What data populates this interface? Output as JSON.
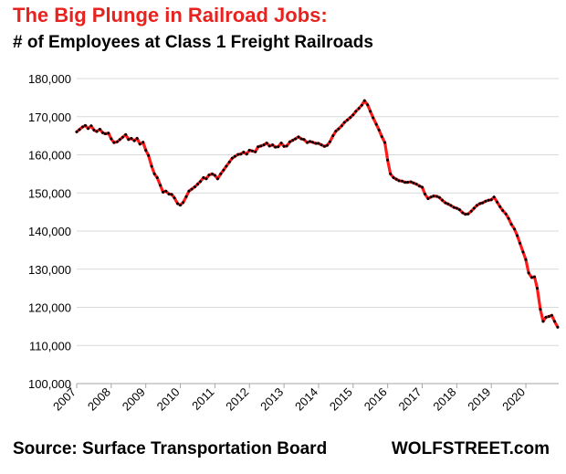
{
  "header": {
    "title": "The Big Plunge in Railroad Jobs:",
    "subtitle": "# of Employees at Class 1 Freight Railroads"
  },
  "footer": {
    "source": "Source: Surface Transportation Board",
    "brand": "WOLFSTREET.com"
  },
  "colors": {
    "title": "#e8221e",
    "line": "#ff1a1a",
    "dots": "#000000",
    "grid": "#d9d9d9",
    "axis": "#a6a6a6"
  },
  "chart_data": {
    "type": "line",
    "title": "The Big Plunge in Railroad Jobs:",
    "subtitle": "# of Employees at Class 1 Freight Railroads",
    "xlabel": "",
    "ylabel": "",
    "ylim": [
      100000,
      180000
    ],
    "xlim": [
      2007,
      2020.95
    ],
    "y_ticks": [
      "100,000",
      "110,000",
      "120,000",
      "130,000",
      "140,000",
      "150,000",
      "160,000",
      "170,000",
      "180,000"
    ],
    "x_ticks": [
      "2007",
      "2008",
      "2009",
      "2010",
      "2011",
      "2012",
      "2013",
      "2014",
      "2015",
      "2016",
      "2017",
      "2018",
      "2019",
      "2020"
    ],
    "grid": true,
    "legend": "none",
    "series": [
      {
        "values": [
          [
            2007.0,
            166000
          ],
          [
            2007.08,
            166600
          ],
          [
            2007.17,
            167300
          ],
          [
            2007.25,
            167700
          ],
          [
            2007.33,
            166900
          ],
          [
            2007.42,
            167600
          ],
          [
            2007.5,
            166500
          ],
          [
            2007.58,
            166100
          ],
          [
            2007.67,
            166700
          ],
          [
            2007.75,
            165800
          ],
          [
            2007.83,
            165500
          ],
          [
            2007.92,
            165700
          ],
          [
            2008.0,
            164200
          ],
          [
            2008.08,
            163200
          ],
          [
            2008.17,
            163400
          ],
          [
            2008.25,
            164000
          ],
          [
            2008.33,
            164600
          ],
          [
            2008.42,
            165300
          ],
          [
            2008.5,
            164000
          ],
          [
            2008.58,
            164300
          ],
          [
            2008.67,
            163700
          ],
          [
            2008.75,
            164300
          ],
          [
            2008.83,
            162800
          ],
          [
            2008.92,
            163300
          ],
          [
            2009.0,
            161200
          ],
          [
            2009.08,
            159800
          ],
          [
            2009.17,
            157000
          ],
          [
            2009.25,
            155000
          ],
          [
            2009.33,
            154000
          ],
          [
            2009.42,
            152000
          ],
          [
            2009.5,
            150200
          ],
          [
            2009.58,
            150500
          ],
          [
            2009.67,
            149700
          ],
          [
            2009.75,
            149600
          ],
          [
            2009.83,
            148700
          ],
          [
            2009.92,
            147200
          ],
          [
            2010.0,
            146800
          ],
          [
            2010.08,
            147500
          ],
          [
            2010.17,
            149000
          ],
          [
            2010.25,
            150500
          ],
          [
            2010.33,
            151000
          ],
          [
            2010.42,
            151600
          ],
          [
            2010.5,
            152300
          ],
          [
            2010.58,
            153000
          ],
          [
            2010.67,
            154000
          ],
          [
            2010.75,
            153700
          ],
          [
            2010.83,
            154700
          ],
          [
            2010.92,
            155000
          ],
          [
            2011.0,
            154600
          ],
          [
            2011.08,
            153700
          ],
          [
            2011.17,
            155000
          ],
          [
            2011.25,
            156000
          ],
          [
            2011.33,
            157000
          ],
          [
            2011.42,
            158100
          ],
          [
            2011.5,
            159100
          ],
          [
            2011.58,
            159600
          ],
          [
            2011.67,
            160100
          ],
          [
            2011.75,
            160200
          ],
          [
            2011.83,
            160700
          ],
          [
            2011.92,
            160200
          ],
          [
            2012.0,
            161200
          ],
          [
            2012.08,
            161000
          ],
          [
            2012.17,
            160800
          ],
          [
            2012.25,
            162100
          ],
          [
            2012.33,
            162300
          ],
          [
            2012.42,
            162600
          ],
          [
            2012.5,
            163100
          ],
          [
            2012.58,
            162300
          ],
          [
            2012.67,
            162600
          ],
          [
            2012.75,
            162000
          ],
          [
            2012.83,
            162100
          ],
          [
            2012.92,
            163100
          ],
          [
            2013.0,
            162200
          ],
          [
            2013.08,
            162300
          ],
          [
            2013.17,
            163400
          ],
          [
            2013.25,
            163800
          ],
          [
            2013.33,
            164200
          ],
          [
            2013.42,
            164700
          ],
          [
            2013.5,
            164200
          ],
          [
            2013.58,
            164000
          ],
          [
            2013.67,
            163200
          ],
          [
            2013.75,
            163500
          ],
          [
            2013.83,
            163300
          ],
          [
            2013.92,
            163000
          ],
          [
            2014.0,
            163000
          ],
          [
            2014.08,
            162600
          ],
          [
            2014.17,
            162200
          ],
          [
            2014.25,
            162500
          ],
          [
            2014.33,
            163400
          ],
          [
            2014.42,
            165000
          ],
          [
            2014.5,
            166200
          ],
          [
            2014.58,
            166800
          ],
          [
            2014.67,
            167600
          ],
          [
            2014.75,
            168500
          ],
          [
            2014.83,
            169100
          ],
          [
            2014.92,
            169800
          ],
          [
            2015.0,
            170500
          ],
          [
            2015.08,
            171400
          ],
          [
            2015.17,
            172200
          ],
          [
            2015.25,
            173000
          ],
          [
            2015.33,
            174200
          ],
          [
            2015.42,
            173100
          ],
          [
            2015.5,
            171400
          ],
          [
            2015.58,
            169700
          ],
          [
            2015.67,
            168000
          ],
          [
            2015.75,
            166500
          ],
          [
            2015.83,
            164800
          ],
          [
            2015.92,
            163200
          ],
          [
            2016.0,
            158600
          ],
          [
            2016.08,
            155000
          ],
          [
            2016.17,
            154000
          ],
          [
            2016.25,
            153600
          ],
          [
            2016.33,
            153200
          ],
          [
            2016.42,
            153100
          ],
          [
            2016.5,
            152800
          ],
          [
            2016.58,
            152800
          ],
          [
            2016.67,
            152900
          ],
          [
            2016.75,
            152600
          ],
          [
            2016.83,
            152300
          ],
          [
            2016.92,
            151800
          ],
          [
            2017.0,
            151500
          ],
          [
            2017.08,
            149700
          ],
          [
            2017.17,
            148500
          ],
          [
            2017.25,
            148900
          ],
          [
            2017.33,
            149200
          ],
          [
            2017.42,
            149100
          ],
          [
            2017.5,
            148800
          ],
          [
            2017.58,
            148100
          ],
          [
            2017.67,
            147400
          ],
          [
            2017.75,
            147100
          ],
          [
            2017.83,
            146700
          ],
          [
            2017.92,
            146200
          ],
          [
            2018.0,
            146000
          ],
          [
            2018.08,
            145600
          ],
          [
            2018.17,
            144800
          ],
          [
            2018.25,
            144400
          ],
          [
            2018.33,
            144500
          ],
          [
            2018.42,
            145200
          ],
          [
            2018.5,
            146000
          ],
          [
            2018.58,
            146700
          ],
          [
            2018.67,
            147200
          ],
          [
            2018.75,
            147400
          ],
          [
            2018.83,
            147800
          ],
          [
            2018.92,
            148100
          ],
          [
            2019.0,
            148200
          ],
          [
            2019.08,
            148900
          ],
          [
            2019.17,
            147600
          ],
          [
            2019.25,
            146400
          ],
          [
            2019.33,
            145400
          ],
          [
            2019.42,
            144500
          ],
          [
            2019.5,
            143300
          ],
          [
            2019.58,
            141800
          ],
          [
            2019.67,
            140500
          ],
          [
            2019.75,
            138800
          ],
          [
            2019.83,
            136800
          ],
          [
            2019.92,
            134500
          ],
          [
            2020.0,
            132500
          ],
          [
            2020.08,
            129000
          ],
          [
            2020.17,
            127800
          ],
          [
            2020.25,
            128000
          ],
          [
            2020.33,
            125000
          ],
          [
            2020.42,
            119500
          ],
          [
            2020.5,
            116300
          ],
          [
            2020.58,
            117400
          ],
          [
            2020.67,
            117600
          ],
          [
            2020.75,
            117900
          ],
          [
            2020.83,
            116300
          ],
          [
            2020.92,
            114800
          ]
        ]
      }
    ]
  }
}
